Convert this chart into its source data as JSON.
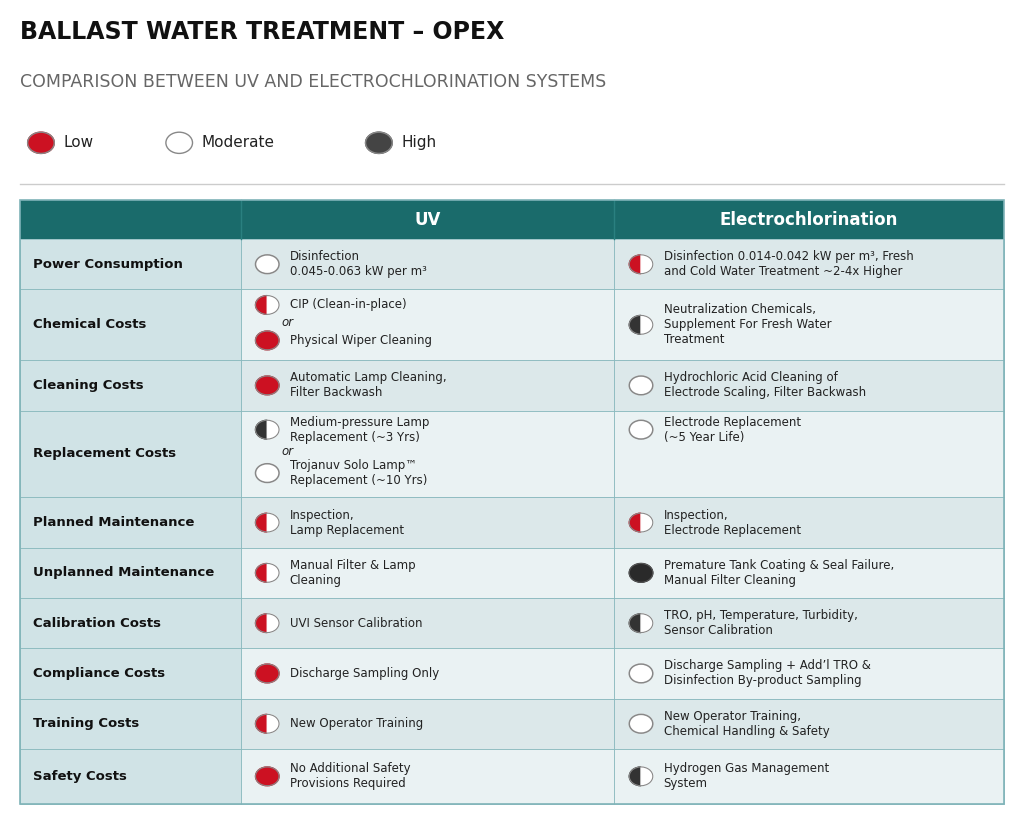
{
  "title1": "BALLAST WATER TREATMENT – OPEX",
  "title2": "COMPARISON BETWEEN UV AND ELECTROCHLORINATION SYSTEMS",
  "header_bg": "#1a6b6b",
  "border_color": "#7fb3b8",
  "red": "#cc1122",
  "dark_gray": "#444444",
  "rows": [
    {
      "label": "Power Consumption",
      "uv_icon": "low",
      "uv_text": "Disinfection\n0.045-0.063 kW per m³",
      "ec_icon": "medium_red",
      "ec_text": "Disinfection 0.014-0.042 kW per m³, Fresh\nand Cold Water Treatment ~2-4x Higher",
      "special": ""
    },
    {
      "label": "Chemical Costs",
      "uv_icon": "medium_red",
      "uv_text": "CIP (Clean-in-place)",
      "uv_icon2": "high",
      "uv_text2": "Physical Wiper Cleaning",
      "ec_icon": "medium_dark",
      "ec_text": "Neutralization Chemicals,\nSupplement For Fresh Water\nTreatment",
      "special": "two_uv"
    },
    {
      "label": "Cleaning Costs",
      "uv_icon": "high",
      "uv_text": "Automatic Lamp Cleaning,\nFilter Backwash",
      "ec_icon": "low",
      "ec_text": "Hydrochloric Acid Cleaning of\nElectrode Scaling, Filter Backwash",
      "special": ""
    },
    {
      "label": "Replacement Costs",
      "uv_icon": "medium_dark",
      "uv_text": "Medium-pressure Lamp\nReplacement (~3 Yrs)",
      "uv_icon2": "low",
      "uv_text2": "Trojanuv Solo Lamp™\nReplacement (~10 Yrs)",
      "ec_icon": "low",
      "ec_text": "Electrode Replacement\n(~5 Year Life)",
      "special": "two_uv"
    },
    {
      "label": "Planned Maintenance",
      "uv_icon": "medium_red",
      "uv_text": "Inspection,\nLamp Replacement",
      "ec_icon": "medium_red",
      "ec_text": "Inspection,\nElectrode Replacement",
      "special": ""
    },
    {
      "label": "Unplanned Maintenance",
      "uv_icon": "medium_red",
      "uv_text": "Manual Filter & Lamp\nCleaning",
      "ec_icon": "very_high",
      "ec_text": "Premature Tank Coating & Seal Failure,\nManual Filter Cleaning",
      "special": ""
    },
    {
      "label": "Calibration Costs",
      "uv_icon": "medium_red",
      "uv_text": "UVI Sensor Calibration",
      "ec_icon": "medium_dark",
      "ec_text": "TRO, pH, Temperature, Turbidity,\nSensor Calibration",
      "special": ""
    },
    {
      "label": "Compliance Costs",
      "uv_icon": "high",
      "uv_text": "Discharge Sampling Only",
      "ec_icon": "low",
      "ec_text": "Discharge Sampling + Add’l TRO &\nDisinfection By-product Sampling",
      "special": ""
    },
    {
      "label": "Training Costs",
      "uv_icon": "medium_red",
      "uv_text": "New Operator Training",
      "ec_icon": "low",
      "ec_text": "New Operator Training,\nChemical Handling & Safety",
      "special": ""
    },
    {
      "label": "Safety Costs",
      "uv_icon": "high",
      "uv_text": "No Additional Safety\nProvisions Required",
      "ec_icon": "medium_dark",
      "ec_text": "Hydrogen Gas Management\nSystem",
      "special": ""
    }
  ]
}
